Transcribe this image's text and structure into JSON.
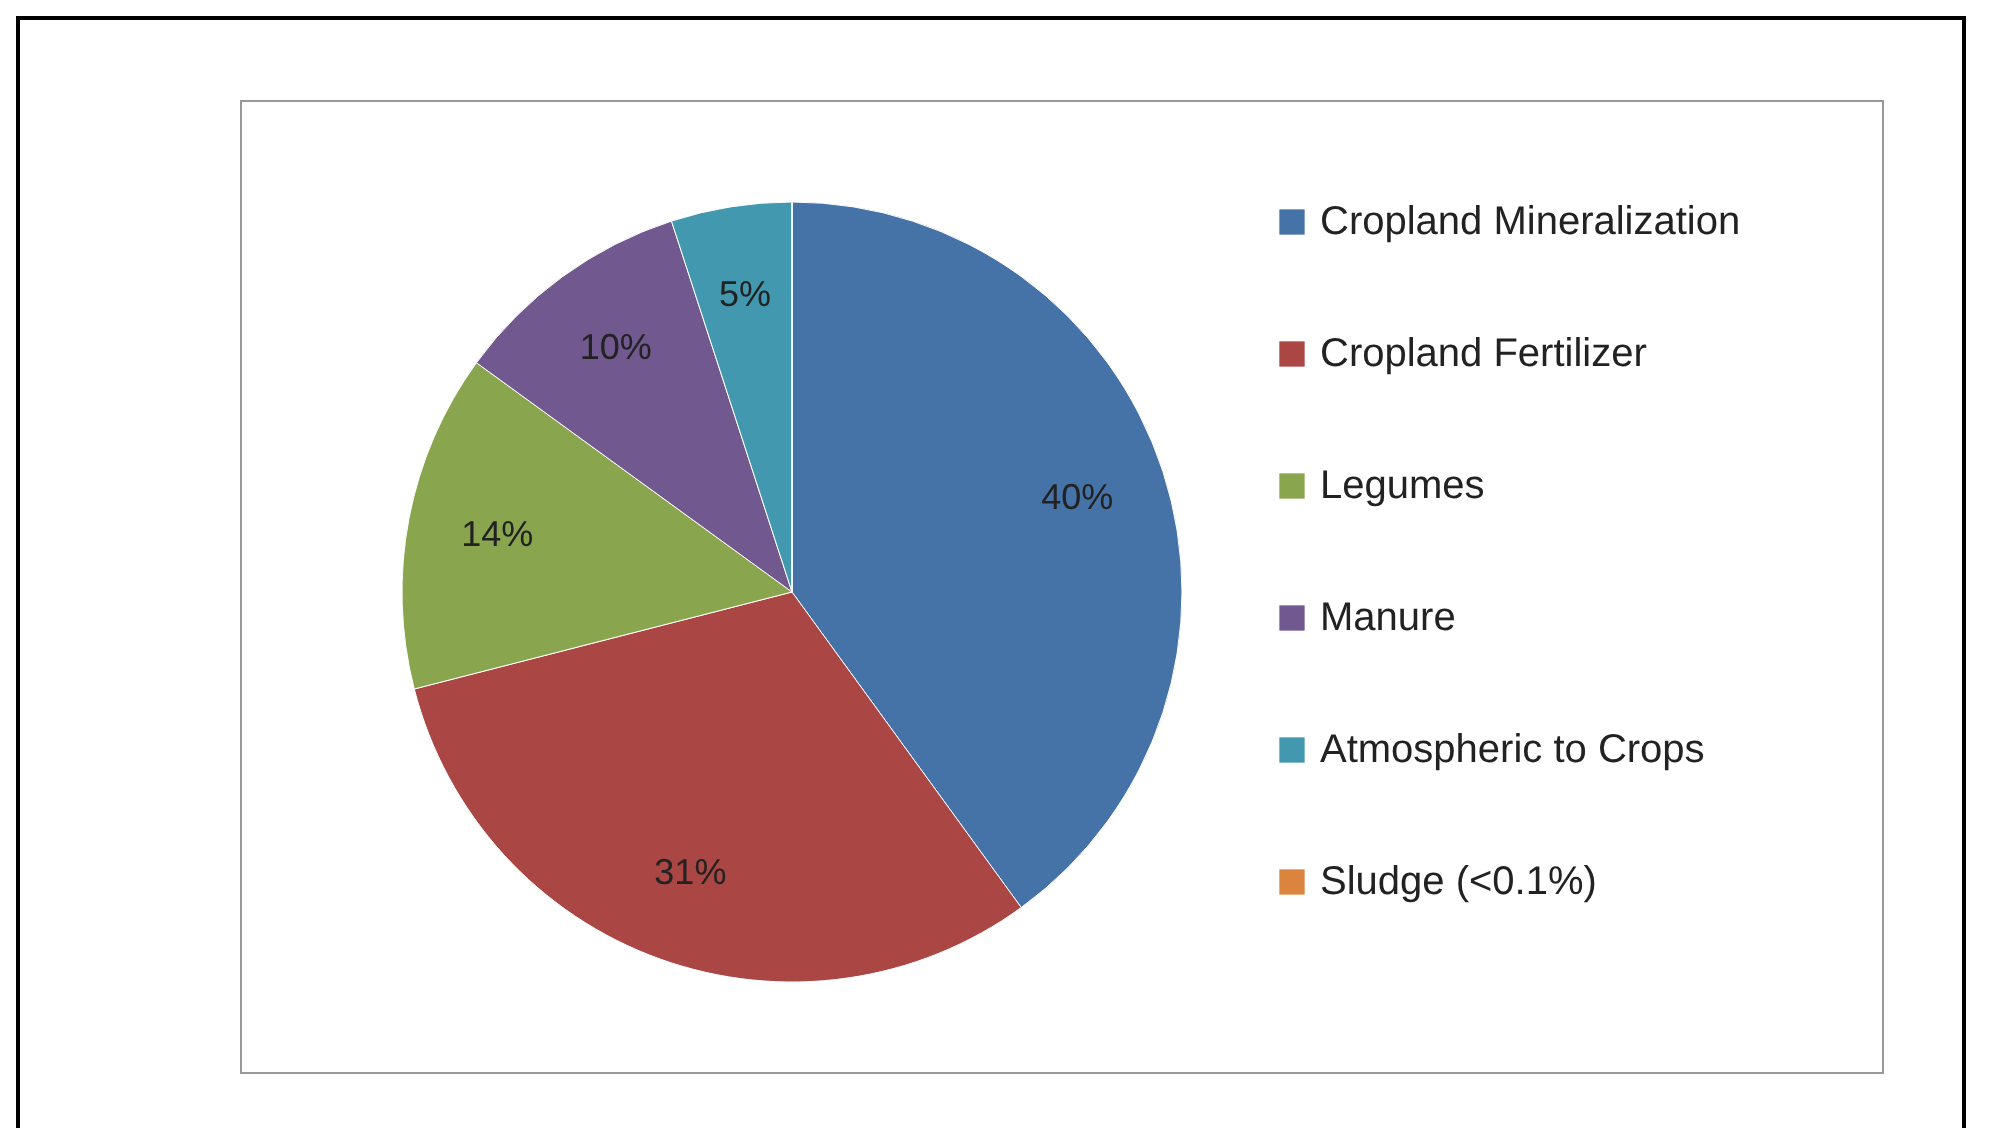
{
  "chart_data": {
    "type": "pie",
    "categories": [
      "Cropland Mineralization",
      "Cropland Fertilizer",
      "Legumes",
      "Manure",
      "Atmospheric to Crops",
      "Sludge (<0.1%)"
    ],
    "values": [
      40,
      31,
      14,
      10,
      5,
      0
    ],
    "value_labels": [
      "40%",
      "31%",
      "14%",
      "10%",
      "5%",
      null
    ],
    "colors": [
      "#4572a7",
      "#aa4643",
      "#89a54e",
      "#71588f",
      "#4198af",
      "#db843d"
    ],
    "legend": "right"
  }
}
